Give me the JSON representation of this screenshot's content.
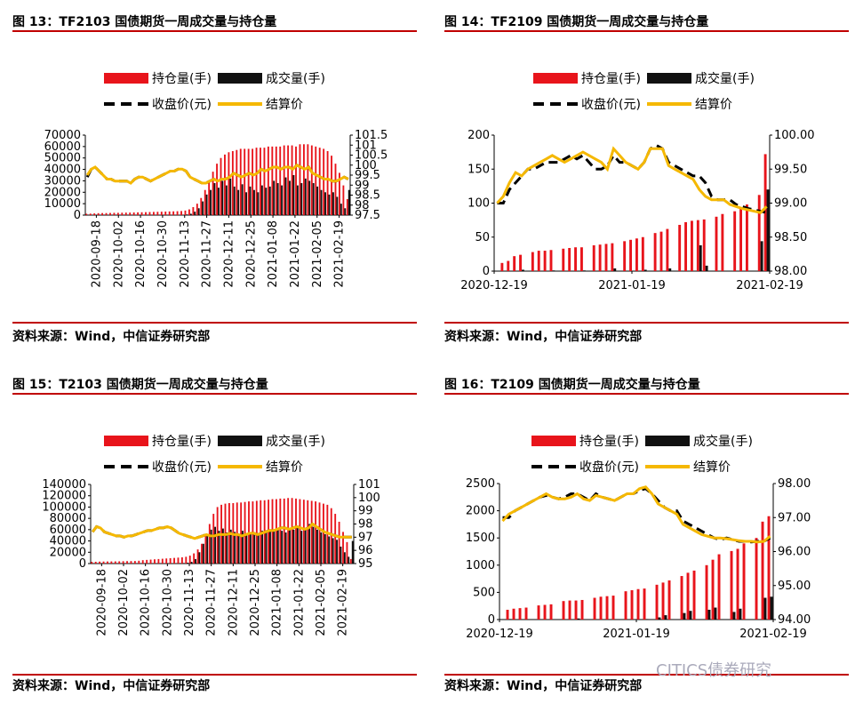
{
  "source_note": "资料来源：Wind，中信证券研究部",
  "watermark": "CITICS债券研究",
  "colors": {
    "oi": "#e8141b",
    "vol": "#111111",
    "close": "#000000",
    "settle": "#f5b800",
    "rule": "#c00000"
  },
  "chart_data": [
    {
      "id": "c13",
      "figure_title": "图 13：TF2103 国债期货一周成交量与持仓量",
      "type": "bar",
      "legend": {
        "oi": "持仓量(手)",
        "vol": "成交量(手)",
        "close": "收盘价(元)",
        "settle": "结算价"
      },
      "x_ticks": [
        "2020-09-18",
        "2020-10-02",
        "2020-10-16",
        "2020-10-30",
        "2020-11-13",
        "2020-11-27",
        "2020-12-11",
        "2020-12-25",
        "2021-01-08",
        "2021-01-22",
        "2021-02-05",
        "2021-02-19"
      ],
      "x_label_rotation": "vertical",
      "y_left": {
        "ticks": [
          0,
          10000,
          20000,
          30000,
          40000,
          50000,
          60000,
          70000
        ],
        "range": [
          0,
          70000
        ]
      },
      "y_right": {
        "ticks": [
          "97.5",
          "98",
          "98.5",
          "99",
          "99.5",
          "100",
          "100.5",
          "101",
          "101.5"
        ],
        "range": [
          97.5,
          101.5
        ]
      },
      "oi": [
        1200,
        1300,
        1500,
        1700,
        1800,
        1800,
        1900,
        2000,
        2000,
        2100,
        2200,
        2200,
        2300,
        2400,
        2500,
        2600,
        2700,
        2800,
        2900,
        3000,
        3100,
        3200,
        3300,
        3400,
        3600,
        4000,
        5000,
        7000,
        10000,
        15000,
        22000,
        30000,
        38000,
        45000,
        50000,
        53000,
        55000,
        56000,
        57000,
        58000,
        58000,
        58000,
        58000,
        59000,
        59000,
        59000,
        60000,
        60000,
        60000,
        60000,
        61000,
        61000,
        61000,
        60000,
        62000,
        62000,
        62000,
        61000,
        60000,
        59000,
        58000,
        56000,
        52000,
        45000,
        37000,
        26000,
        14000
      ],
      "vol": [
        100,
        100,
        100,
        100,
        100,
        100,
        100,
        150,
        150,
        150,
        150,
        150,
        200,
        200,
        200,
        200,
        200,
        200,
        250,
        250,
        250,
        300,
        300,
        300,
        400,
        600,
        1200,
        3000,
        6000,
        12000,
        18000,
        22000,
        28000,
        24000,
        30000,
        26000,
        32000,
        25000,
        22000,
        27000,
        20000,
        25000,
        22000,
        20000,
        26000,
        24000,
        25000,
        30000,
        28000,
        26000,
        33000,
        30000,
        35000,
        26000,
        28000,
        32000,
        30000,
        28000,
        25000,
        22000,
        20000,
        18000,
        20000,
        16000,
        10000,
        6000,
        22000
      ],
      "close": [
        99.4,
        99.8,
        99.9,
        99.7,
        99.5,
        99.3,
        99.3,
        99.2,
        99.2,
        99.2,
        99.2,
        99.1,
        99.3,
        99.4,
        99.4,
        99.3,
        99.2,
        99.3,
        99.4,
        99.5,
        99.6,
        99.7,
        99.7,
        99.8,
        99.8,
        99.7,
        99.4,
        99.3,
        99.2,
        99.1,
        99.1,
        99.2,
        99.3,
        99.2,
        99.3,
        99.3,
        99.4,
        99.6,
        99.5,
        99.4,
        99.5,
        99.6,
        99.5,
        99.6,
        99.8,
        99.7,
        99.8,
        99.9,
        99.9,
        99.8,
        99.9,
        99.9,
        99.8,
        100.0,
        99.9,
        99.8,
        99.9,
        99.6,
        99.5,
        99.4,
        99.3,
        99.3,
        99.2,
        99.2,
        99.3,
        99.4,
        99.3
      ],
      "settle": [
        99.5,
        99.8,
        99.9,
        99.7,
        99.5,
        99.3,
        99.3,
        99.2,
        99.2,
        99.2,
        99.2,
        99.1,
        99.3,
        99.4,
        99.4,
        99.3,
        99.2,
        99.3,
        99.4,
        99.5,
        99.6,
        99.7,
        99.7,
        99.8,
        99.8,
        99.7,
        99.4,
        99.3,
        99.2,
        99.1,
        99.1,
        99.2,
        99.3,
        99.2,
        99.3,
        99.3,
        99.4,
        99.6,
        99.5,
        99.4,
        99.5,
        99.6,
        99.5,
        99.6,
        99.8,
        99.7,
        99.8,
        99.9,
        99.9,
        99.8,
        99.9,
        99.9,
        99.8,
        100.0,
        99.9,
        99.8,
        99.9,
        99.6,
        99.5,
        99.4,
        99.3,
        99.3,
        99.2,
        99.2,
        99.3,
        99.4,
        99.3
      ]
    },
    {
      "id": "c14",
      "figure_title": "图 14：TF2109 国债期货一周成交量与持仓量",
      "type": "bar",
      "legend": {
        "oi": "持仓量(手)",
        "vol": "成交量(手)",
        "close": "收盘价(元)",
        "settle": "结算价"
      },
      "x_ticks": [
        "2020-12-19",
        "2021-01-19",
        "2021-02-19"
      ],
      "x_label_rotation": "horizontal",
      "y_left": {
        "ticks": [
          "0",
          "50",
          "100",
          "150",
          "200"
        ],
        "range": [
          0,
          200
        ]
      },
      "y_right": {
        "ticks": [
          "98.00",
          "98.50",
          "99.00",
          "99.50",
          "100.00"
        ],
        "range": [
          98,
          100
        ]
      },
      "oi": [
        0,
        12,
        15,
        22,
        24,
        0,
        28,
        30,
        30,
        31,
        0,
        33,
        34,
        35,
        35,
        0,
        38,
        39,
        40,
        41,
        0,
        44,
        46,
        48,
        50,
        0,
        56,
        58,
        62,
        0,
        68,
        72,
        74,
        75,
        76,
        0,
        80,
        84,
        0,
        88,
        92,
        98,
        0,
        112,
        172
      ],
      "vol": [
        0,
        0,
        0,
        0,
        2,
        0,
        0,
        0,
        0,
        1,
        0,
        0,
        0,
        0,
        1,
        0,
        0,
        0,
        0,
        4,
        0,
        0,
        0,
        0,
        2,
        0,
        0,
        0,
        4,
        0,
        0,
        0,
        0,
        38,
        8,
        0,
        0,
        0,
        0,
        0,
        0,
        0,
        0,
        44,
        120
      ],
      "close": [
        99.0,
        99.0,
        99.2,
        99.3,
        99.4,
        99.5,
        99.5,
        99.55,
        99.6,
        99.6,
        99.6,
        99.65,
        99.7,
        99.65,
        99.7,
        99.6,
        99.5,
        99.5,
        99.55,
        99.7,
        99.6,
        99.6,
        99.55,
        99.5,
        99.6,
        99.8,
        99.85,
        99.8,
        99.6,
        99.55,
        99.5,
        99.45,
        99.4,
        99.4,
        99.3,
        99.1,
        99.05,
        99.05,
        99.05,
        98.98,
        98.95,
        98.92,
        98.9,
        98.88,
        98.86
      ],
      "settle": [
        99.0,
        99.1,
        99.3,
        99.45,
        99.4,
        99.5,
        99.55,
        99.6,
        99.65,
        99.7,
        99.65,
        99.6,
        99.65,
        99.7,
        99.75,
        99.7,
        99.65,
        99.6,
        99.5,
        99.8,
        99.7,
        99.6,
        99.55,
        99.5,
        99.6,
        99.8,
        99.8,
        99.8,
        99.55,
        99.5,
        99.45,
        99.4,
        99.35,
        99.2,
        99.1,
        99.05,
        99.05,
        99.05,
        98.98,
        98.95,
        98.92,
        98.9,
        98.88,
        98.86,
        98.95
      ]
    },
    {
      "id": "c15",
      "figure_title": "图 15：T2103 国债期货一周成交量与持仓量",
      "type": "bar",
      "legend": {
        "oi": "持仓量(手)",
        "vol": "成交量(手)",
        "close": "收盘价(元)",
        "settle": "结算价"
      },
      "x_ticks": [
        "2020-09-18",
        "2020-10-02",
        "2020-10-16",
        "2020-10-30",
        "2020-11-13",
        "2020-11-27",
        "2020-12-11",
        "2020-12-25",
        "2021-01-08",
        "2021-01-22",
        "2021-02-05",
        "2021-02-19"
      ],
      "x_label_rotation": "vertical",
      "y_left": {
        "ticks": [
          0,
          20000,
          40000,
          60000,
          80000,
          100000,
          120000,
          140000
        ],
        "range": [
          0,
          140000
        ]
      },
      "y_right": {
        "ticks": [
          "95",
          "96",
          "97",
          "98",
          "99",
          "100",
          "101"
        ],
        "range": [
          95,
          101
        ]
      },
      "oi": [
        3000,
        3200,
        3500,
        3600,
        3700,
        3800,
        3900,
        4000,
        4200,
        4300,
        4400,
        4500,
        5000,
        6000,
        6500,
        7000,
        7500,
        8000,
        8500,
        9000,
        9500,
        10000,
        10500,
        11000,
        12000,
        14000,
        18000,
        25000,
        35000,
        50000,
        70000,
        88000,
        100000,
        104000,
        106000,
        107000,
        107000,
        108000,
        108000,
        109000,
        110000,
        110000,
        111000,
        112000,
        112000,
        113000,
        114000,
        114000,
        115000,
        115000,
        116000,
        116000,
        115000,
        114000,
        113000,
        112000,
        111000,
        110000,
        108000,
        106000,
        104000,
        98000,
        88000,
        74000,
        56000,
        38000,
        8000
      ],
      "vol": [
        200,
        200,
        200,
        200,
        200,
        300,
        300,
        300,
        300,
        300,
        300,
        400,
        500,
        500,
        500,
        600,
        600,
        600,
        700,
        700,
        800,
        800,
        900,
        1000,
        1500,
        3000,
        8000,
        20000,
        35000,
        50000,
        60000,
        65000,
        58000,
        62000,
        55000,
        60000,
        56000,
        52000,
        58000,
        50000,
        55000,
        53000,
        50000,
        58000,
        55000,
        57000,
        60000,
        62000,
        58000,
        55000,
        63000,
        60000,
        65000,
        58000,
        60000,
        70000,
        65000,
        60000,
        55000,
        52000,
        48000,
        45000,
        42000,
        30000,
        20000,
        12000,
        40000
      ],
      "close": [
        97.4,
        97.8,
        97.7,
        97.4,
        97.3,
        97.2,
        97.1,
        97.1,
        97.0,
        97.1,
        97.1,
        97.2,
        97.3,
        97.4,
        97.5,
        97.5,
        97.6,
        97.7,
        97.7,
        97.8,
        97.7,
        97.5,
        97.3,
        97.2,
        97.1,
        97.0,
        96.9,
        97.0,
        97.1,
        97.2,
        97.1,
        97.1,
        97.2,
        97.2,
        97.2,
        97.3,
        97.2,
        97.2,
        97.1,
        97.2,
        97.3,
        97.3,
        97.2,
        97.3,
        97.4,
        97.5,
        97.5,
        97.6,
        97.7,
        97.7,
        97.6,
        97.7,
        97.8,
        97.7,
        97.6,
        97.7,
        98.0,
        97.8,
        97.6,
        97.4,
        97.3,
        97.2,
        97.1,
        97.0,
        97.0,
        97.0,
        97.0
      ],
      "settle": [
        97.4,
        97.8,
        97.7,
        97.4,
        97.3,
        97.2,
        97.1,
        97.1,
        97.0,
        97.1,
        97.1,
        97.2,
        97.3,
        97.4,
        97.5,
        97.5,
        97.6,
        97.7,
        97.7,
        97.8,
        97.7,
        97.5,
        97.3,
        97.2,
        97.1,
        97.0,
        96.9,
        97.0,
        97.1,
        97.2,
        97.1,
        97.1,
        97.2,
        97.2,
        97.2,
        97.3,
        97.2,
        97.2,
        97.1,
        97.2,
        97.3,
        97.3,
        97.2,
        97.3,
        97.4,
        97.5,
        97.5,
        97.6,
        97.7,
        97.7,
        97.6,
        97.7,
        97.8,
        97.7,
        97.6,
        97.7,
        98.0,
        97.8,
        97.6,
        97.4,
        97.3,
        97.2,
        97.1,
        97.0,
        97.0,
        97.0,
        97.0
      ]
    },
    {
      "id": "c16",
      "figure_title": "图 16：T2109 国债期货一周成交量与持仓量",
      "type": "bar",
      "legend": {
        "oi": "持仓量(手)",
        "vol": "成交量(手)",
        "close": "收盘价(元)",
        "settle": "结算价"
      },
      "x_ticks": [
        "2020-12-19",
        "2021-01-19",
        "2021-02-19"
      ],
      "x_label_rotation": "horizontal",
      "y_left": {
        "ticks": [
          "0",
          "500",
          "1000",
          "1500",
          "2000",
          "2500"
        ],
        "range": [
          0,
          2500
        ]
      },
      "y_right": {
        "ticks": [
          "94.00",
          "95.00",
          "96.00",
          "97.00",
          "98.00"
        ],
        "range": [
          94,
          98
        ]
      },
      "oi": [
        0,
        180,
        200,
        210,
        220,
        0,
        260,
        270,
        280,
        0,
        340,
        350,
        350,
        360,
        0,
        400,
        420,
        430,
        440,
        0,
        520,
        540,
        560,
        570,
        0,
        640,
        680,
        720,
        0,
        800,
        860,
        900,
        0,
        1000,
        1100,
        1200,
        0,
        1260,
        1300,
        1400,
        0,
        1500,
        1800,
        1900
      ],
      "vol": [
        0,
        10,
        0,
        0,
        0,
        0,
        0,
        0,
        0,
        0,
        0,
        0,
        20,
        0,
        0,
        0,
        0,
        0,
        0,
        0,
        0,
        0,
        0,
        10,
        0,
        40,
        80,
        0,
        0,
        120,
        160,
        0,
        0,
        180,
        220,
        0,
        0,
        140,
        200,
        0,
        0,
        0,
        400,
        420
      ],
      "close": [
        97.0,
        97.0,
        97.2,
        97.3,
        97.4,
        97.5,
        97.6,
        97.65,
        97.6,
        97.55,
        97.6,
        97.7,
        97.7,
        97.6,
        97.5,
        97.7,
        97.6,
        97.55,
        97.5,
        97.6,
        97.7,
        97.7,
        97.8,
        97.85,
        97.7,
        97.5,
        97.3,
        97.2,
        97.2,
        96.9,
        96.8,
        96.7,
        96.6,
        96.5,
        96.4,
        96.35,
        96.4,
        96.35,
        96.3,
        96.3,
        96.28,
        96.3,
        96.3,
        96.4
      ],
      "settle": [
        96.9,
        97.1,
        97.2,
        97.3,
        97.4,
        97.5,
        97.6,
        97.7,
        97.6,
        97.55,
        97.55,
        97.6,
        97.7,
        97.55,
        97.5,
        97.65,
        97.6,
        97.55,
        97.5,
        97.6,
        97.7,
        97.7,
        97.85,
        97.9,
        97.7,
        97.4,
        97.3,
        97.2,
        97.1,
        96.8,
        96.7,
        96.6,
        96.5,
        96.45,
        96.4,
        96.4,
        96.38,
        96.35,
        96.32,
        96.3,
        96.3,
        96.28,
        96.3,
        96.45
      ]
    }
  ]
}
